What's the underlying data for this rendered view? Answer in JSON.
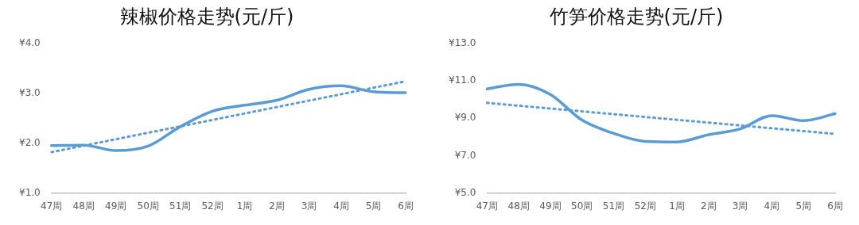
{
  "chart_data": [
    {
      "type": "line",
      "title": "辣椒价格走势(元/斤)",
      "categories": [
        "47周",
        "48周",
        "49周",
        "50周",
        "51周",
        "52周",
        "1周",
        "2周",
        "3周",
        "4周",
        "5周",
        "6周"
      ],
      "series": [
        {
          "color": "#5b9bd5",
          "values": [
            1.95,
            1.96,
            1.85,
            1.94,
            2.33,
            2.64,
            2.76,
            2.86,
            3.08,
            3.15,
            3.03,
            3.01
          ]
        },
        {
          "type": "line",
          "x": [
            "47周",
            "6周"
          ],
          "color": "#5b9bd5",
          "line_style": "dotted",
          "values": [
            1.82,
            3.24
          ]
        }
      ],
      "ylim": [
        1,
        4
      ],
      "yticks": [
        {
          "value": 1,
          "label": "¥1.0"
        },
        {
          "value": 2,
          "label": "¥2.0"
        },
        {
          "value": 3,
          "label": "¥3.0"
        },
        {
          "value": 4,
          "label": "¥4.0"
        }
      ],
      "grid": false,
      "legend": false,
      "marker": "none",
      "line_style": "solid"
    },
    {
      "type": "line",
      "title": "竹笋价格走势(元/斤)",
      "categories": [
        "47周",
        "48周",
        "49周",
        "50周",
        "51周",
        "52周",
        "1周",
        "2周",
        "3周",
        "4周",
        "5周",
        "6周"
      ],
      "series": [
        {
          "color": "#5b9bd5",
          "values": [
            10.57,
            10.81,
            10.27,
            8.9,
            8.19,
            7.76,
            7.73,
            8.12,
            8.43,
            9.14,
            8.87,
            9.24
          ]
        },
        {
          "type": "line",
          "x": [
            "47周",
            "6周"
          ],
          "color": "#5b9bd5",
          "line_style": "dotted",
          "values": [
            9.82,
            8.16
          ]
        }
      ],
      "ylim": [
        5,
        13
      ],
      "yticks": [
        {
          "value": 5,
          "label": "¥5.0"
        },
        {
          "value": 7,
          "label": "¥7.0"
        },
        {
          "value": 9,
          "label": "¥9.0"
        },
        {
          "value": 11,
          "label": "¥11.0"
        },
        {
          "value": 13,
          "label": "¥13.0"
        }
      ],
      "grid": false,
      "legend": false,
      "marker": "none",
      "line_style": "solid"
    }
  ]
}
